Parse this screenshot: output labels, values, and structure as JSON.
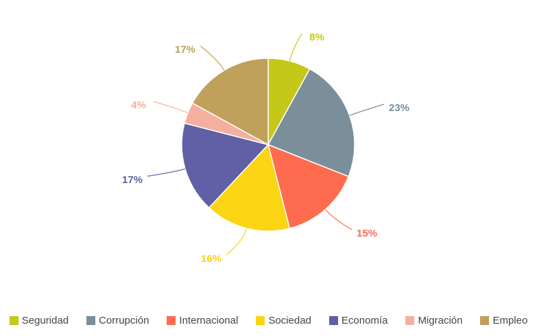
{
  "chart_data": {
    "type": "pie",
    "title": "",
    "start_angle_deg": 0,
    "direction": "clockwise",
    "slices": [
      {
        "label": "Seguridad",
        "value": 8,
        "display": "8%",
        "color": "#c5c818"
      },
      {
        "label": "Corrupción",
        "value": 23,
        "display": "23%",
        "color": "#7a8f9a"
      },
      {
        "label": "Internacional",
        "value": 15,
        "display": "15%",
        "color": "#ff6b4f"
      },
      {
        "label": "Sociedad",
        "value": 16,
        "display": "16%",
        "color": "#fbd414"
      },
      {
        "label": "Economía",
        "value": 17,
        "display": "17%",
        "color": "#5f60a5"
      },
      {
        "label": "Migración",
        "value": 4,
        "display": "4%",
        "color": "#f4afa0"
      },
      {
        "label": "Empleo",
        "value": 17,
        "display": "17%",
        "color": "#bfa15b"
      }
    ],
    "legend_position": "bottom"
  }
}
